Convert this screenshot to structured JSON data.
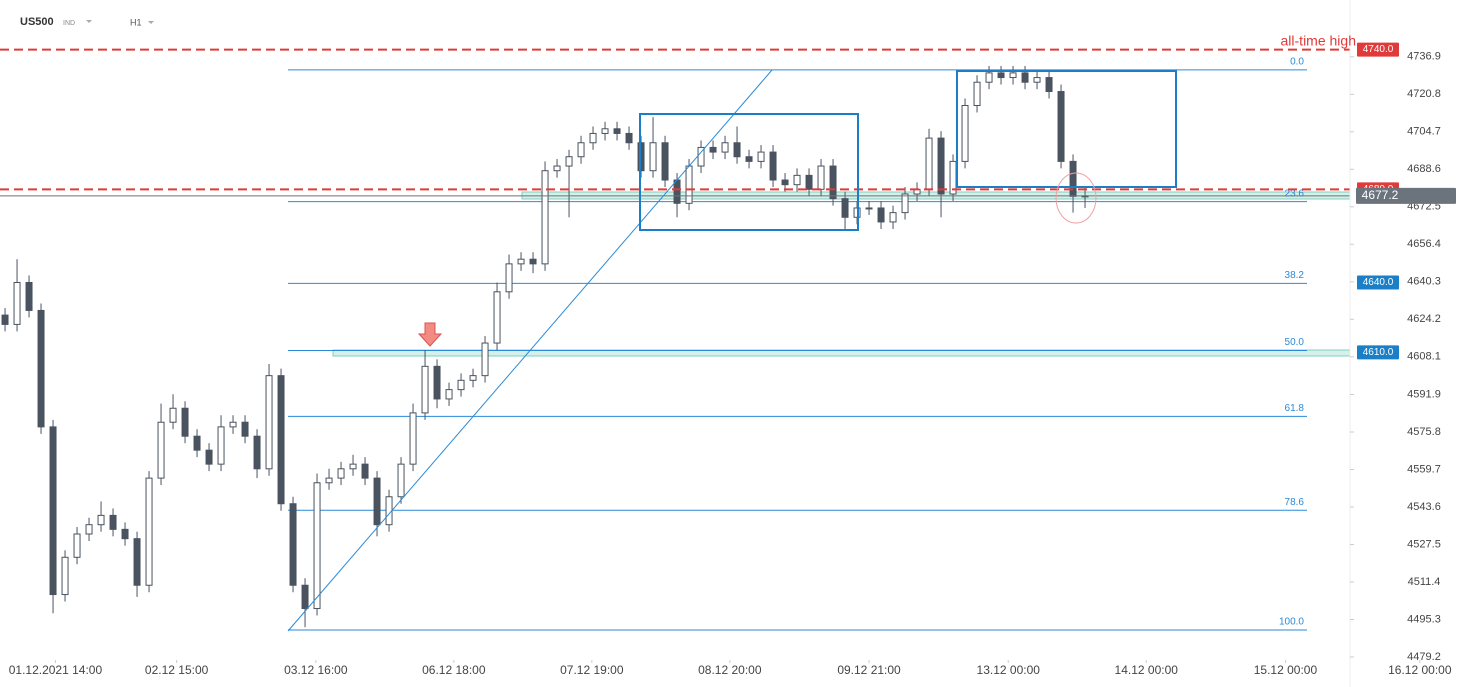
{
  "header": {
    "symbol": "US500",
    "market": "IND",
    "timeframe": "H1"
  },
  "chart_data": {
    "type": "candlestick",
    "annotation": "all-time high",
    "color_up": "#ffffff",
    "color_down": "#4a5360",
    "open": [
      4626,
      4622,
      4640,
      4628,
      4578,
      4506,
      4522,
      4532,
      4536,
      4540,
      4534,
      4530,
      4510,
      4556,
      4580,
      4586,
      4574,
      4568,
      4562,
      4578,
      4580,
      4574,
      4560,
      4600,
      4545,
      4510,
      4500,
      4554,
      4556,
      4560,
      4562,
      4556,
      4536,
      4548,
      4562,
      4584,
      4604,
      4590,
      4594,
      4598,
      4600,
      4614,
      4636,
      4648,
      4650,
      4648,
      4688,
      4690,
      4694,
      4700,
      4704,
      4706,
      4704,
      4700,
      4688,
      4700,
      4684,
      4674,
      4690,
      4698,
      4696,
      4700,
      4694,
      4692,
      4696,
      4684,
      4682,
      4686,
      4680,
      4690,
      4676,
      4668,
      4672,
      4672,
      4666,
      4670,
      4678,
      4680,
      4702,
      4678,
      4692,
      4716,
      4726,
      4730,
      4728,
      4730,
      4726,
      4728,
      4722,
      4692,
      4677
    ],
    "high": [
      4629,
      4650,
      4643,
      4631,
      4581,
      4525,
      4535,
      4539,
      4546,
      4543,
      4537,
      4533,
      4559,
      4588,
      4592,
      4589,
      4577,
      4571,
      4583,
      4583,
      4583,
      4577,
      4605,
      4603,
      4548,
      4513,
      4558,
      4560,
      4563,
      4566,
      4565,
      4559,
      4551,
      4565,
      4588,
      4611,
      4607,
      4597,
      4601,
      4603,
      4617,
      4640,
      4652,
      4653,
      4653,
      4692,
      4693,
      4697,
      4703,
      4707,
      4709,
      4709,
      4707,
      4703,
      4711,
      4703,
      4687,
      4693,
      4701,
      4701,
      4703,
      4707,
      4697,
      4699,
      4699,
      4687,
      4689,
      4689,
      4693,
      4693,
      4679,
      4675,
      4675,
      4675,
      4673,
      4681,
      4683,
      4706,
      4705,
      4695,
      4719,
      4729,
      4733,
      4733,
      4733,
      4733,
      4731,
      4731,
      4725,
      4695,
      4681
    ],
    "low": [
      4619,
      4619,
      4625,
      4575,
      4498,
      4503,
      4519,
      4529,
      4533,
      4531,
      4527,
      4505,
      4507,
      4553,
      4577,
      4571,
      4565,
      4559,
      4559,
      4575,
      4571,
      4556,
      4557,
      4542,
      4507,
      4492,
      4497,
      4551,
      4553,
      4557,
      4553,
      4531,
      4533,
      4545,
      4559,
      4581,
      4586,
      4587,
      4591,
      4595,
      4597,
      4611,
      4633,
      4645,
      4644,
      4645,
      4685,
      4668,
      4691,
      4697,
      4701,
      4701,
      4697,
      4685,
      4685,
      4681,
      4668,
      4671,
      4687,
      4693,
      4693,
      4691,
      4689,
      4689,
      4681,
      4679,
      4679,
      4677,
      4677,
      4673,
      4663,
      4665,
      4669,
      4663,
      4663,
      4667,
      4675,
      4677,
      4668,
      4675,
      4689,
      4713,
      4723,
      4725,
      4725,
      4723,
      4723,
      4719,
      4689,
      4670,
      4672
    ],
    "close": [
      4622,
      4640,
      4628,
      4578,
      4506,
      4522,
      4532,
      4536,
      4540,
      4534,
      4530,
      4510,
      4556,
      4580,
      4586,
      4574,
      4568,
      4562,
      4578,
      4580,
      4574,
      4560,
      4600,
      4545,
      4510,
      4500,
      4554,
      4556,
      4560,
      4562,
      4556,
      4536,
      4548,
      4562,
      4584,
      4604,
      4590,
      4594,
      4598,
      4600,
      4614,
      4636,
      4648,
      4650,
      4648,
      4688,
      4690,
      4694,
      4700,
      4704,
      4706,
      4704,
      4700,
      4688,
      4700,
      4684,
      4674,
      4690,
      4698,
      4696,
      4700,
      4694,
      4692,
      4696,
      4684,
      4682,
      4686,
      4680,
      4690,
      4676,
      4668,
      4672,
      4672,
      4666,
      4670,
      4678,
      4680,
      4702,
      4678,
      4692,
      4716,
      4726,
      4730,
      4728,
      4730,
      4726,
      4728,
      4722,
      4692,
      4677,
      4677.2
    ],
    "xlim": [
      -0.42,
      121.83
    ],
    "ylim": [
      4477.9,
      4761.3
    ],
    "yticks": [
      4736.9,
      4720.8,
      4704.7,
      4688.6,
      4672.5,
      4656.4,
      4640.3,
      4624.2,
      4608.1,
      4591.9,
      4575.8,
      4559.7,
      4543.6,
      4527.5,
      4511.4,
      4495.3,
      4479.2
    ],
    "xticks": [
      {
        "value": 4.2,
        "label": "01.12.2021 14:00"
      },
      {
        "value": 14.3,
        "label": "02.12 15:00"
      },
      {
        "value": 25.9,
        "label": "03.12 16:00"
      },
      {
        "value": 37.4,
        "label": "06.12 18:00"
      },
      {
        "value": 48.9,
        "label": "07.12 19:00"
      },
      {
        "value": 60.4,
        "label": "08.12 20:00"
      },
      {
        "value": 72.0,
        "label": "09.12 21:00"
      },
      {
        "value": 83.6,
        "label": "13.12 00:00"
      },
      {
        "value": 95.1,
        "label": "14.12 00:00"
      },
      {
        "value": 106.7,
        "label": "15.12 00:00"
      },
      {
        "value": 117.9,
        "label": "16.12 00:00"
      }
    ],
    "levels": [
      {
        "value": 4740,
        "label": "4740.0",
        "color": "#e03a3a",
        "style": "dashed"
      },
      {
        "value": 4680,
        "label": "4680.0",
        "color": "#e03a3a",
        "style": "dashed"
      },
      {
        "value": 4677.2,
        "color": "#6b737c",
        "style": "solid"
      },
      {
        "value": 4640,
        "label": "4640.0",
        "color": "#1b7fc7",
        "style": "none"
      },
      {
        "value": 4610,
        "label": "4610.0",
        "color": "#1b7fc7",
        "style": "none"
      }
    ],
    "fib_color": "#2a8ad8",
    "fibonacci": [
      {
        "label": "0.0",
        "value": 4731.3
      },
      {
        "label": "23.6",
        "value": 4674.7
      },
      {
        "label": "38.2",
        "value": 4639.6
      },
      {
        "label": "50.0",
        "value": 4610.8
      },
      {
        "label": "61.8",
        "value": 4582.5
      },
      {
        "label": "78.6",
        "value": 4542.2
      },
      {
        "label": "100.0",
        "value": 4490.8
      }
    ]
  }
}
